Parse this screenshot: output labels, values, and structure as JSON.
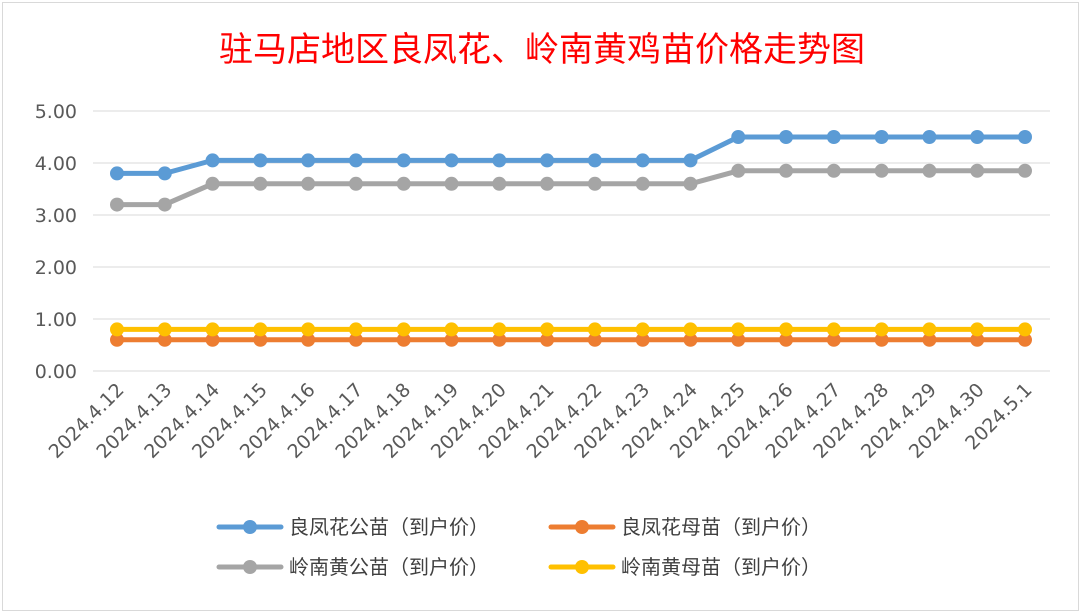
{
  "chart_data": {
    "type": "line",
    "title": "驻马店地区良凤花、岭南黄鸡苗价格走势图",
    "xlabel": "",
    "ylabel": "",
    "ylim": [
      0,
      5
    ],
    "y_ticks": [
      "0.00",
      "1.00",
      "2.00",
      "3.00",
      "4.00",
      "5.00"
    ],
    "grid": true,
    "legend_position": "bottom",
    "categories": [
      "2024.4.12",
      "2024.4.13",
      "2024.4.14",
      "2024.4.15",
      "2024.4.16",
      "2024.4.17",
      "2024.4.18",
      "2024.4.19",
      "2024.4.20",
      "2024.4.21",
      "2024.4.22",
      "2024.4.23",
      "2024.4.24",
      "2024.4.25",
      "2024.4.26",
      "2024.4.27",
      "2024.4.28",
      "2024.4.29",
      "2024.4.30",
      "2024.5.1"
    ],
    "series": [
      {
        "name": "良凤花公苗（到户价）",
        "color": "#5b9bd5",
        "values": [
          3.8,
          3.8,
          4.05,
          4.05,
          4.05,
          4.05,
          4.05,
          4.05,
          4.05,
          4.05,
          4.05,
          4.05,
          4.05,
          4.5,
          4.5,
          4.5,
          4.5,
          4.5,
          4.5,
          4.5
        ]
      },
      {
        "name": "良凤花母苗（到户价）",
        "color": "#ed7d31",
        "values": [
          0.6,
          0.6,
          0.6,
          0.6,
          0.6,
          0.6,
          0.6,
          0.6,
          0.6,
          0.6,
          0.6,
          0.6,
          0.6,
          0.6,
          0.6,
          0.6,
          0.6,
          0.6,
          0.6,
          0.6
        ]
      },
      {
        "name": "岭南黄公苗（到户价）",
        "color": "#a5a5a5",
        "values": [
          3.2,
          3.2,
          3.6,
          3.6,
          3.6,
          3.6,
          3.6,
          3.6,
          3.6,
          3.6,
          3.6,
          3.6,
          3.6,
          3.85,
          3.85,
          3.85,
          3.85,
          3.85,
          3.85,
          3.85
        ]
      },
      {
        "name": "岭南黄母苗（到户价）",
        "color": "#ffc000",
        "values": [
          0.8,
          0.8,
          0.8,
          0.8,
          0.8,
          0.8,
          0.8,
          0.8,
          0.8,
          0.8,
          0.8,
          0.8,
          0.8,
          0.8,
          0.8,
          0.8,
          0.8,
          0.8,
          0.8,
          0.8
        ]
      }
    ]
  }
}
